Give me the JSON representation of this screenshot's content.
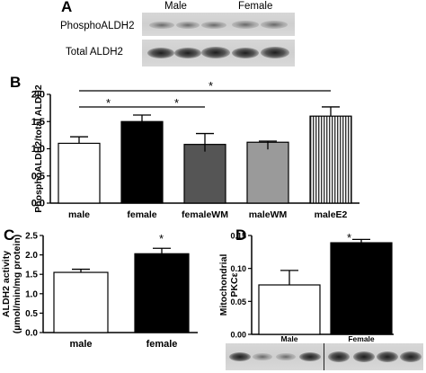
{
  "panel_a": {
    "letter": "A",
    "group_labels": [
      "Male",
      "Female"
    ],
    "row_labels": [
      "PhosphoALDH2",
      "Total ALDH2"
    ]
  },
  "panel_b": {
    "letter": "B",
    "significance_marks": [
      "*",
      "*",
      "*"
    ]
  },
  "panel_c": {
    "letter": "C",
    "significance_marks": [
      "*"
    ]
  },
  "panel_d": {
    "letter": "D",
    "significance_marks": [
      "*"
    ]
  },
  "chart_data": [
    {
      "id": "B",
      "type": "bar",
      "categories": [
        "male",
        "female",
        "femaleWM",
        "maleWM",
        "maleE2"
      ],
      "values": [
        1.1,
        1.5,
        1.08,
        1.12,
        1.6
      ],
      "errors": [
        0.12,
        0.12,
        0.2,
        0.02,
        0.17
      ],
      "fills": [
        "#ffffff",
        "#000000",
        "#555555",
        "#9a9a9a",
        "stripes"
      ],
      "ylabel": "PhosphoALDH2/total ALDH2",
      "ylim": [
        0,
        2.0
      ],
      "yticks": [
        "0.0",
        "0.5",
        "1.0",
        "1.5",
        "2.0"
      ]
    },
    {
      "id": "C",
      "type": "bar",
      "categories": [
        "male",
        "female"
      ],
      "values": [
        1.55,
        2.03
      ],
      "errors": [
        0.08,
        0.14
      ],
      "fills": [
        "#ffffff",
        "#000000"
      ],
      "ylabel": "ALDH2 activity\n(µmol/min/mg protein)",
      "ylim": [
        0,
        2.5
      ],
      "yticks": [
        "0.0",
        "0.5",
        "1.0",
        "1.5",
        "2.0",
        "2.5"
      ]
    },
    {
      "id": "D",
      "type": "bar",
      "categories": [
        "Male",
        "Female"
      ],
      "values": [
        0.075,
        0.139
      ],
      "errors": [
        0.022,
        0.005
      ],
      "fills": [
        "#ffffff",
        "#000000"
      ],
      "ylabel": "Mitochondrial\nPKCε",
      "ylim": [
        0,
        0.15
      ],
      "yticks": [
        "0.00",
        "0.05",
        "0.10",
        "0.15"
      ]
    }
  ]
}
